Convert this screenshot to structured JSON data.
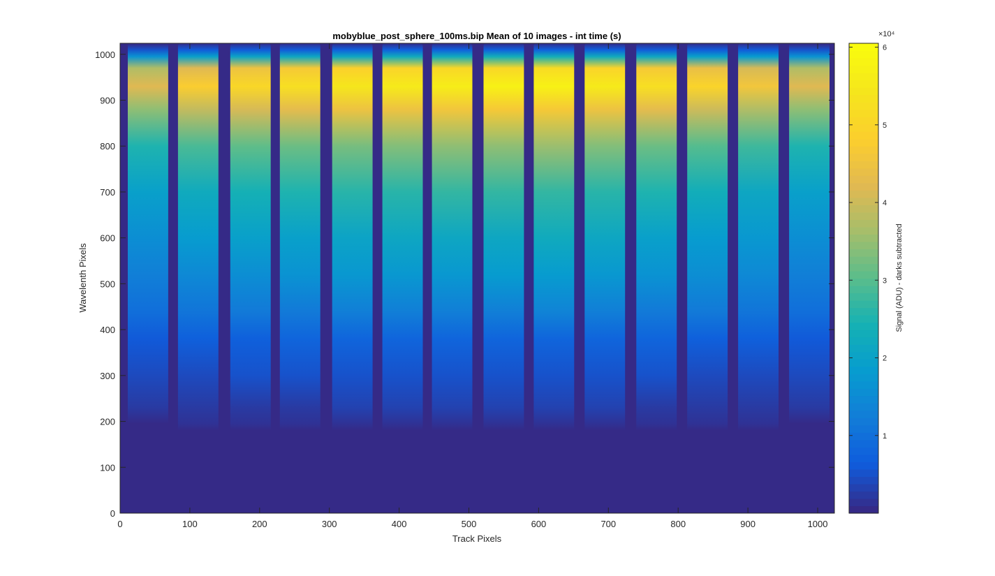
{
  "chart_data": {
    "type": "heatmap",
    "title": "mobyblue_post_sphere_100ms.bip  Mean of 10 images - int time (s)",
    "xlabel": "Track Pixels",
    "ylabel": "Wavelenth Pixels",
    "xlim": [
      0,
      1024
    ],
    "ylim": [
      0,
      1024
    ],
    "xticks": [
      0,
      100,
      200,
      300,
      400,
      500,
      600,
      700,
      800,
      900,
      1000
    ],
    "yticks": [
      0,
      100,
      200,
      300,
      400,
      500,
      600,
      700,
      800,
      900,
      1000
    ],
    "colorbar": {
      "label": "Signal (ADU) - darks subtracted",
      "exponent_label": "×10⁴",
      "range": [
        0,
        60500
      ],
      "ticks": [
        1,
        2,
        3,
        4,
        5,
        6
      ],
      "colormap": "parula",
      "levels": 64
    },
    "tracks": {
      "count": 14,
      "centers": [
        40,
        112,
        187,
        258,
        333,
        405,
        476,
        550,
        622,
        695,
        769,
        842,
        915,
        988
      ],
      "peak_values": [
        44000,
        50000,
        53000,
        55000,
        57000,
        58000,
        59000,
        60000,
        60500,
        58000,
        55000,
        52000,
        48000,
        44000
      ]
    },
    "profile": {
      "wavelength_pixels": [
        0,
        180,
        195,
        230,
        300,
        380,
        440,
        520,
        600,
        700,
        800,
        880,
        930,
        970,
        995,
        1010,
        1020,
        1024
      ],
      "relative_signal": [
        0,
        0,
        0.02,
        0.05,
        0.09,
        0.14,
        0.22,
        0.3,
        0.36,
        0.45,
        0.58,
        0.78,
        0.95,
        0.85,
        0.38,
        0.12,
        0.04,
        0
      ]
    }
  }
}
